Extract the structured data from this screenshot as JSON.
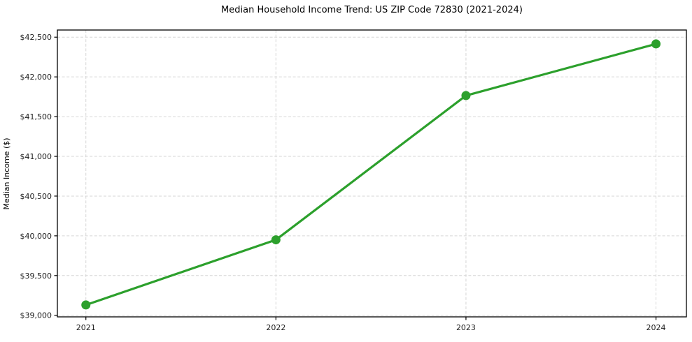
{
  "page": {
    "background": "#ffffff"
  },
  "chart_data": {
    "type": "line",
    "title": "Median Household Income Trend: US ZIP Code 72830 (2021-2024)",
    "xlabel": "",
    "ylabel": "Median Income ($)",
    "x": [
      2021,
      2022,
      2023,
      2024
    ],
    "xtick_labels": [
      "2021",
      "2022",
      "2023",
      "2024"
    ],
    "values": [
      39130,
      39950,
      41765,
      42415
    ],
    "ytick_values": [
      39000,
      39500,
      40000,
      40500,
      41000,
      41500,
      42000,
      42500
    ],
    "ytick_labels": [
      "$39,000",
      "$39,500",
      "$40,000",
      "$40,500",
      "$41,000",
      "$41,500",
      "$42,000",
      "$42,500"
    ],
    "xlim": [
      2020.85,
      2024.16
    ],
    "ylim": [
      38980,
      42590
    ],
    "grid": true,
    "legend": "none",
    "line_color": "#2ca02c",
    "marker": "circle",
    "grid_color": "#d6d6d6",
    "axis_color": "#000000",
    "text_color": "#1c1c1c"
  }
}
